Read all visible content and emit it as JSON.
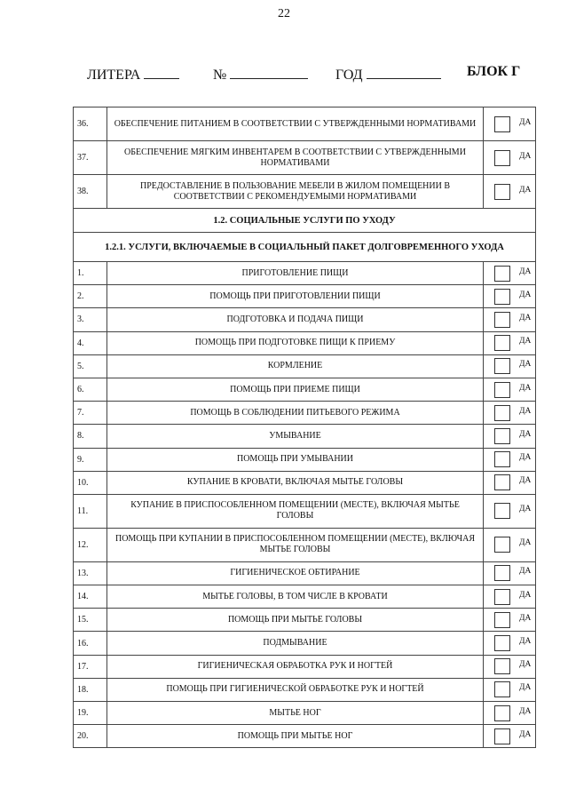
{
  "page_number": "22",
  "header": {
    "litera": "ЛИТЕРА",
    "number": "№",
    "year": "ГОД",
    "block": "БЛОК Г"
  },
  "yes_label": "ДА",
  "rows_top": [
    {
      "n": "36.",
      "text": "ОБЕСПЕЧЕНИЕ ПИТАНИЕМ В СООТВЕТСТВИИ С УТВЕРЖДЕННЫМИ НОРМАТИВАМИ"
    },
    {
      "n": "37.",
      "text": "ОБЕСПЕЧЕНИЕ МЯГКИМ ИНВЕНТАРЕМ В СООТВЕТСТВИИ С УТВЕРЖДЕННЫМИ НОРМАТИВАМИ"
    },
    {
      "n": "38.",
      "text": "ПРЕДОСТАВЛЕНИЕ В ПОЛЬЗОВАНИЕ МЕБЕЛИ В ЖИЛОМ ПОМЕЩЕНИИ В СООТВЕТСТВИИ С РЕКОМЕНДУЕМЫМИ НОРМАТИВАМИ"
    }
  ],
  "section": "1.2. СОЦИАЛЬНЫЕ УСЛУГИ ПО УХОДУ",
  "subsection": "1.2.1. УСЛУГИ, ВКЛЮЧАЕМЫЕ В СОЦИАЛЬНЫЙ ПАКЕТ ДОЛГОВРЕМЕННОГО УХОДА",
  "rows": [
    {
      "n": "1.",
      "text": "ПРИГОТОВЛЕНИЕ ПИЩИ"
    },
    {
      "n": "2.",
      "text": "ПОМОЩЬ ПРИ ПРИГОТОВЛЕНИИ ПИЩИ"
    },
    {
      "n": "3.",
      "text": "ПОДГОТОВКА И ПОДАЧА ПИЩИ"
    },
    {
      "n": "4.",
      "text": "ПОМОЩЬ ПРИ ПОДГОТОВКЕ ПИЩИ К ПРИЕМУ"
    },
    {
      "n": "5.",
      "text": "КОРМЛЕНИЕ"
    },
    {
      "n": "6.",
      "text": "ПОМОЩЬ ПРИ ПРИЕМЕ ПИЩИ"
    },
    {
      "n": "7.",
      "text": "ПОМОЩЬ В СОБЛЮДЕНИИ ПИТЬЕВОГО РЕЖИМА"
    },
    {
      "n": "8.",
      "text": "УМЫВАНИЕ"
    },
    {
      "n": "9.",
      "text": "ПОМОЩЬ ПРИ УМЫВАНИИ"
    },
    {
      "n": "10.",
      "text": "КУПАНИЕ В КРОВАТИ, ВКЛЮЧАЯ МЫТЬЕ ГОЛОВЫ"
    },
    {
      "n": "11.",
      "text": "КУПАНИЕ В ПРИСПОСОБЛЕННОМ ПОМЕЩЕНИИ (МЕСТЕ), ВКЛЮЧАЯ МЫТЬЕ ГОЛОВЫ"
    },
    {
      "n": "12.",
      "text": "ПОМОЩЬ ПРИ КУПАНИИ В ПРИСПОСОБЛЕННОМ ПОМЕЩЕНИИ (МЕСТЕ), ВКЛЮЧАЯ МЫТЬЕ ГОЛОВЫ"
    },
    {
      "n": "13.",
      "text": "ГИГИЕНИЧЕСКОЕ ОБТИРАНИЕ"
    },
    {
      "n": "14.",
      "text": "МЫТЬЕ ГОЛОВЫ, В ТОМ ЧИСЛЕ В КРОВАТИ"
    },
    {
      "n": "15.",
      "text": "ПОМОЩЬ ПРИ МЫТЬЕ ГОЛОВЫ"
    },
    {
      "n": "16.",
      "text": "ПОДМЫВАНИЕ"
    },
    {
      "n": "17.",
      "text": "ГИГИЕНИЧЕСКАЯ ОБРАБОТКА РУК И НОГТЕЙ"
    },
    {
      "n": "18.",
      "text": "ПОМОЩЬ ПРИ ГИГИЕНИЧЕСКОЙ ОБРАБОТКЕ РУК И НОГТЕЙ"
    },
    {
      "n": "19.",
      "text": "МЫТЬЕ НОГ"
    },
    {
      "n": "20.",
      "text": "ПОМОЩЬ ПРИ МЫТЬЕ НОГ"
    }
  ]
}
